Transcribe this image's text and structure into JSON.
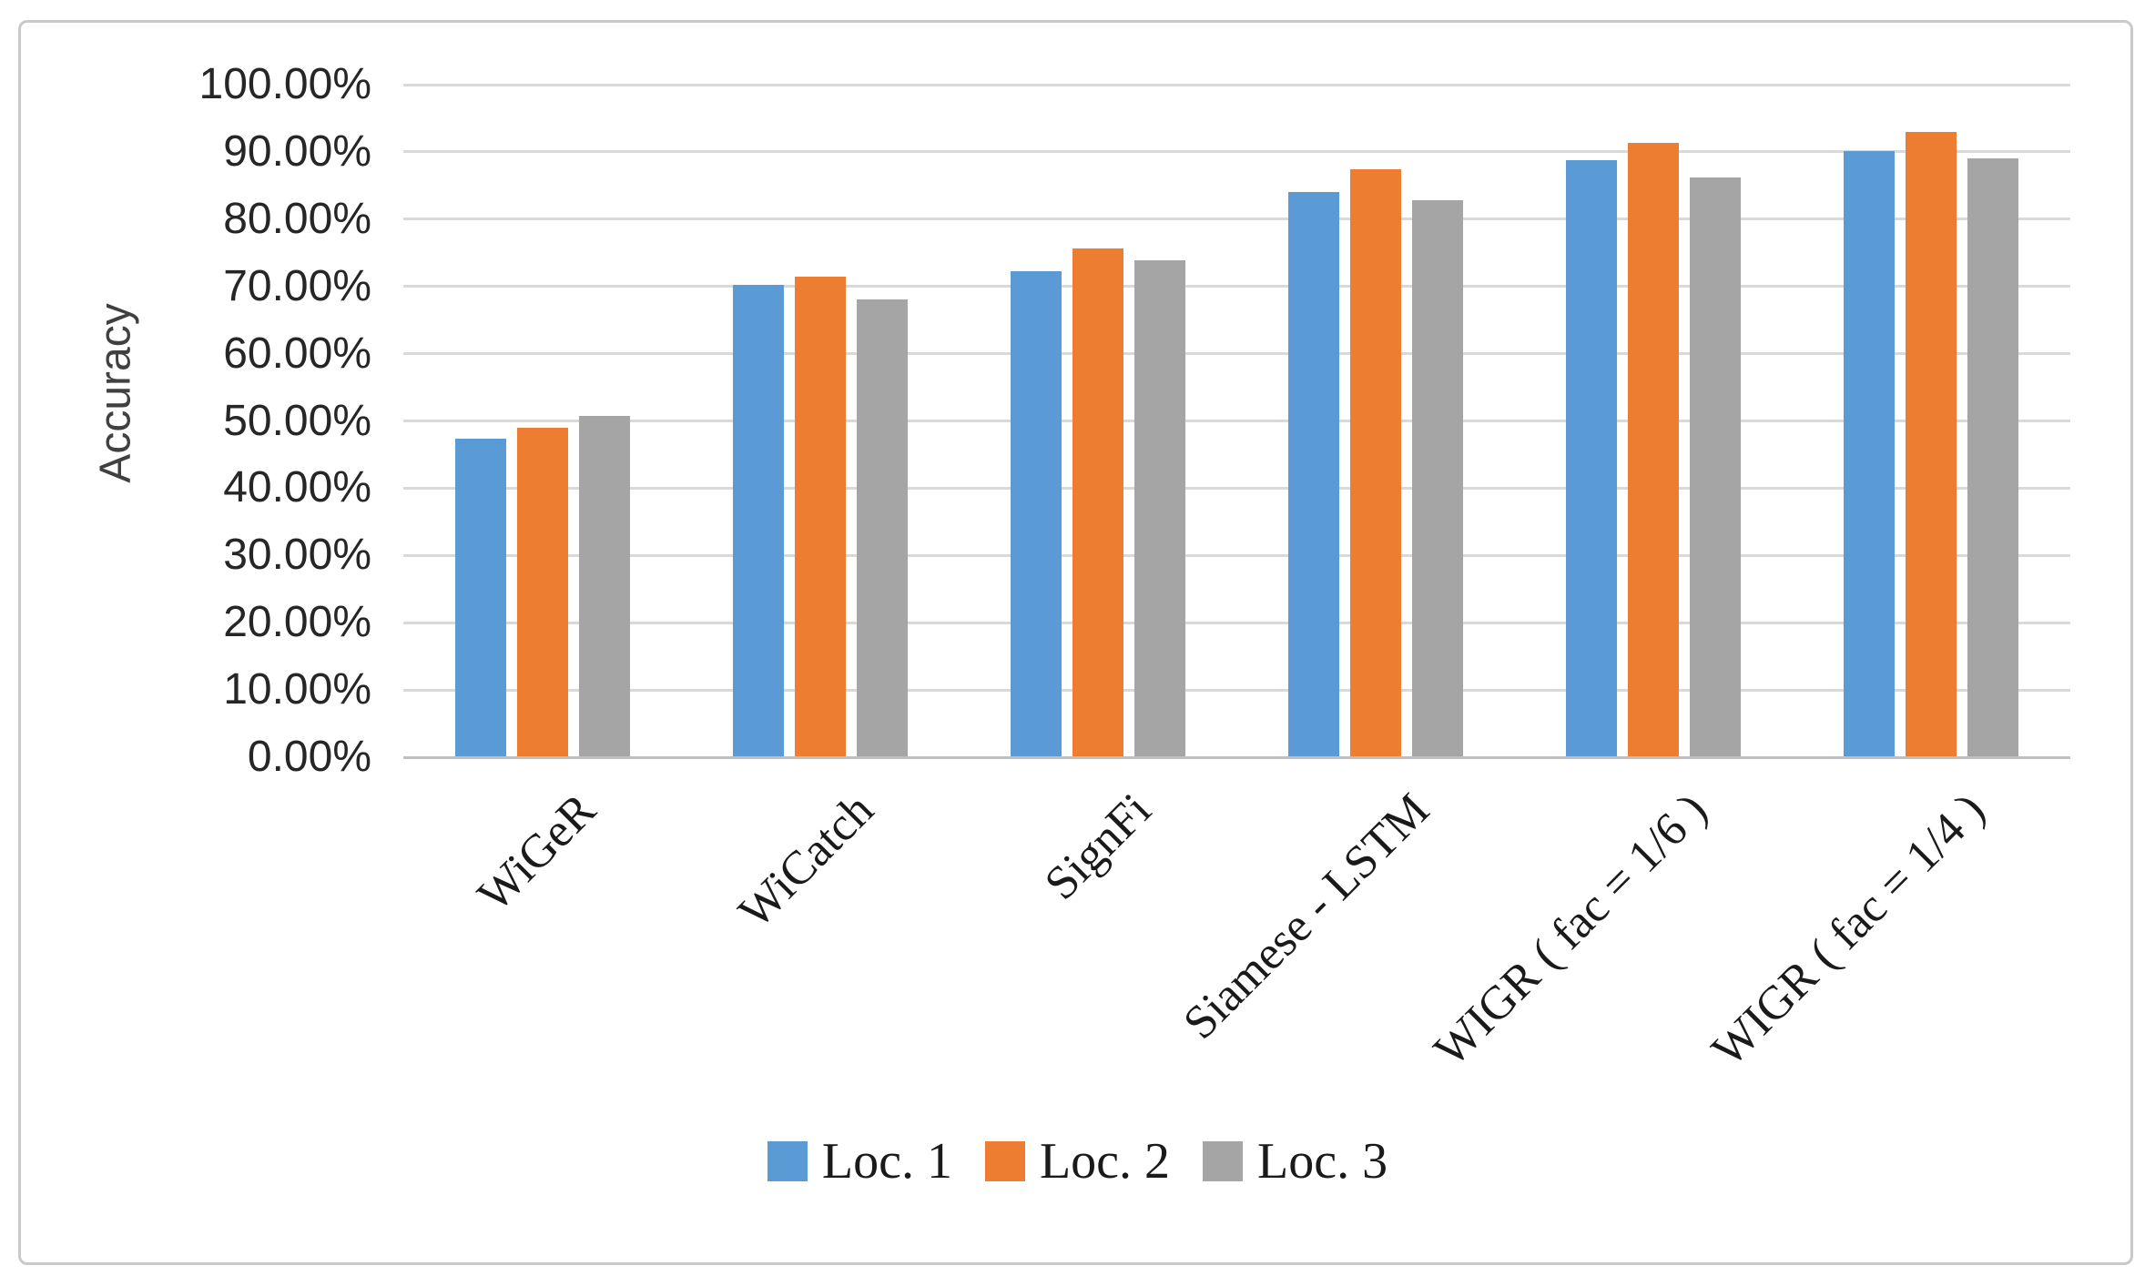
{
  "chart_data": {
    "type": "bar",
    "title": "",
    "xlabel": "",
    "ylabel": "Accuracy",
    "categories": [
      "WiGeR",
      "WiCatch",
      "SignFi",
      "Siamese - LSTM",
      "WIGR ( fac = 1/6 )",
      "WIGR ( fac = 1/4 )"
    ],
    "series": [
      {
        "name": "Loc. 1",
        "color": "#5B9BD5",
        "values": [
          47.3,
          70.2,
          72.2,
          84.1,
          88.8,
          90.1
        ]
      },
      {
        "name": "Loc. 2",
        "color": "#ED7D31",
        "values": [
          49.0,
          71.4,
          75.6,
          87.4,
          91.3,
          92.9
        ]
      },
      {
        "name": "Loc. 3",
        "color": "#A5A5A5",
        "values": [
          50.8,
          68.0,
          73.9,
          82.8,
          86.2,
          89.0
        ]
      }
    ],
    "y_axis": {
      "min": 0,
      "max": 100,
      "step": 10,
      "tick_labels": [
        "0.00%",
        "10.00%",
        "20.00%",
        "30.00%",
        "40.00%",
        "50.00%",
        "60.00%",
        "70.00%",
        "80.00%",
        "90.00%",
        "100.00%"
      ]
    },
    "grid": true,
    "legend_position": "bottom",
    "colors": {
      "gridline": "#d9d9d9",
      "axis_line": "#bfbfbf",
      "tick_text": "#262626",
      "category_text": "#1a1a1a",
      "border": "#c9c9c9"
    }
  }
}
